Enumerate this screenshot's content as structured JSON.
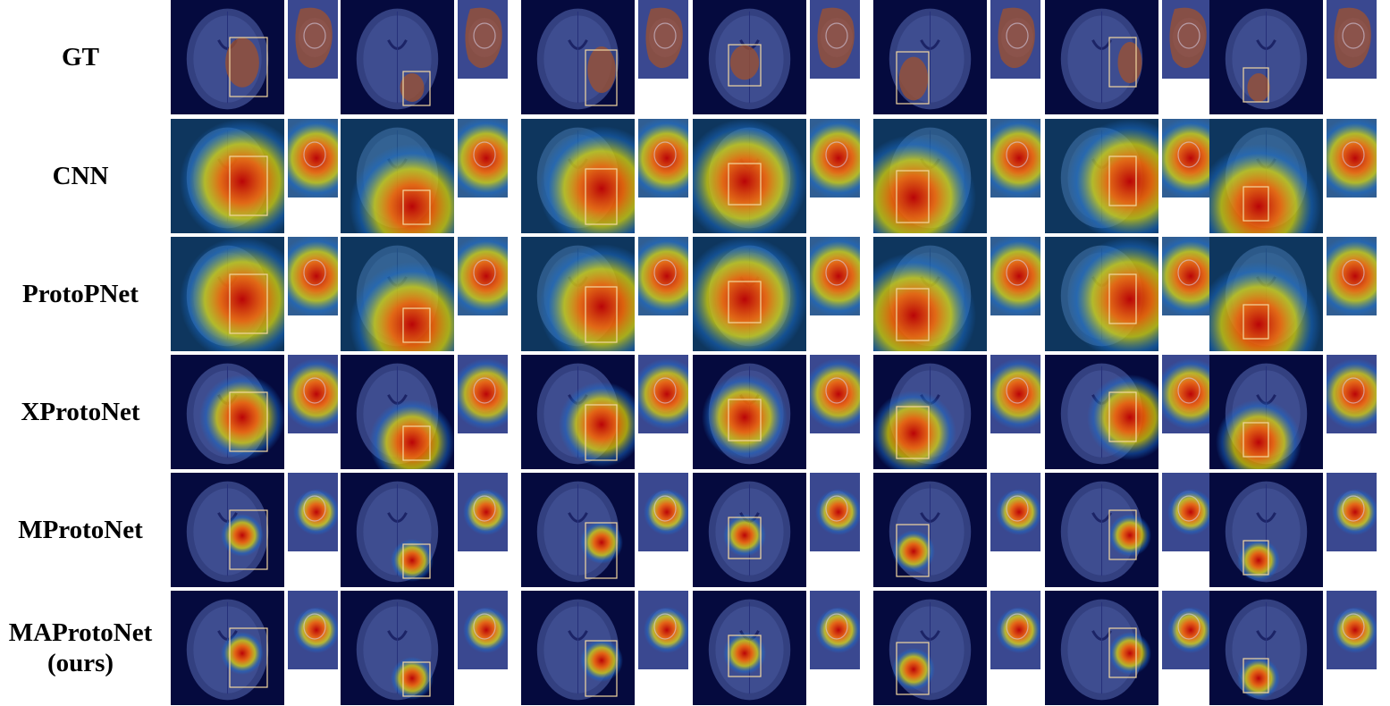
{
  "figure": {
    "rows": [
      {
        "id": "gt",
        "label_lines": [
          "GT"
        ],
        "kind": "mask"
      },
      {
        "id": "cnn",
        "label_lines": [
          "CNN"
        ],
        "kind": "wide"
      },
      {
        "id": "protopnet",
        "label_lines": [
          "ProtoPNet"
        ],
        "kind": "wide"
      },
      {
        "id": "xprotonet",
        "label_lines": [
          "XProtoNet"
        ],
        "kind": "mid"
      },
      {
        "id": "mprotonet",
        "label_lines": [
          "MProtoNet"
        ],
        "kind": "focal"
      },
      {
        "id": "maprotonet",
        "label_lines": [
          "MAProtoNet",
          "(ours)"
        ],
        "kind": "focal"
      }
    ],
    "case_count": 7,
    "colors": {
      "brain_background": "#050a3e",
      "brain_tissue": "#3c4a8c",
      "mask": "#a0522d",
      "box": "#f2d7a0",
      "heat_hot": "#c00000",
      "heat_mid": "#e8e000",
      "heat_low": "#1a6fd0"
    }
  }
}
